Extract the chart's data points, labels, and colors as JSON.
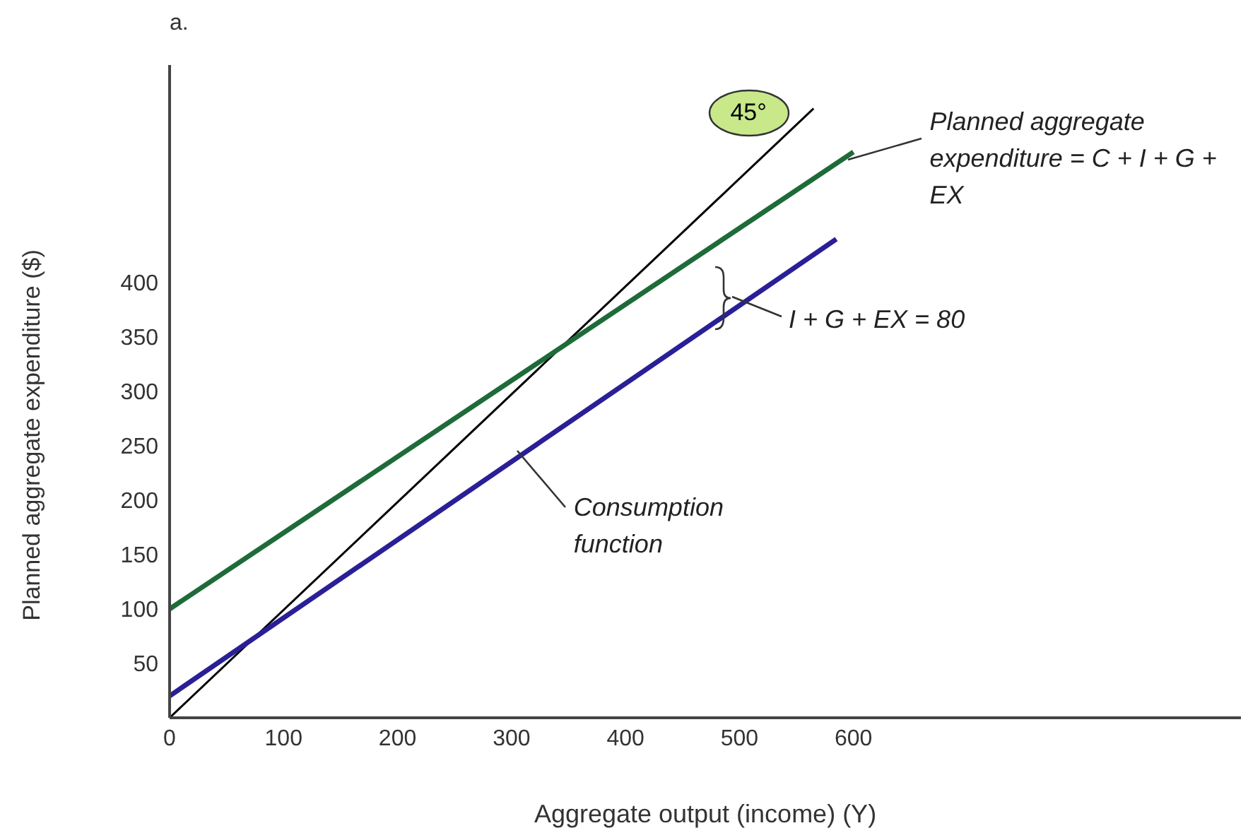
{
  "chart_data": {
    "type": "line",
    "xlabel": "Aggregate output (income) (Y)",
    "ylabel": "Planned aggregate expenditure ($)",
    "xlim": [
      0,
      940
    ],
    "ylim": [
      0,
      600
    ],
    "xticks": [
      0,
      100,
      200,
      300,
      400,
      500,
      600
    ],
    "yticks": [
      50,
      100,
      150,
      200,
      250,
      300,
      350,
      400
    ],
    "marker": "none",
    "series": [
      {
        "color": "#000000",
        "x": [
          0,
          565
        ],
        "values": [
          0,
          560
        ]
      },
      {
        "color": "#1e6b3a",
        "x": [
          0,
          600
        ],
        "values": [
          100,
          520
        ]
      },
      {
        "color": "#2a1f96",
        "x": [
          0,
          585
        ],
        "values": [
          20,
          440
        ]
      }
    ],
    "annotations": [
      "a.",
      {
        "text": "45°",
        "x": 560,
        "y": 556
      },
      {
        "text": "Planned aggregate expenditure = C + I + G + EX",
        "x": 590,
        "y": 513
      },
      "I + G + EX = 80",
      {
        "text": "Consumption function",
        "x": 300,
        "y": 246
      }
    ]
  }
}
